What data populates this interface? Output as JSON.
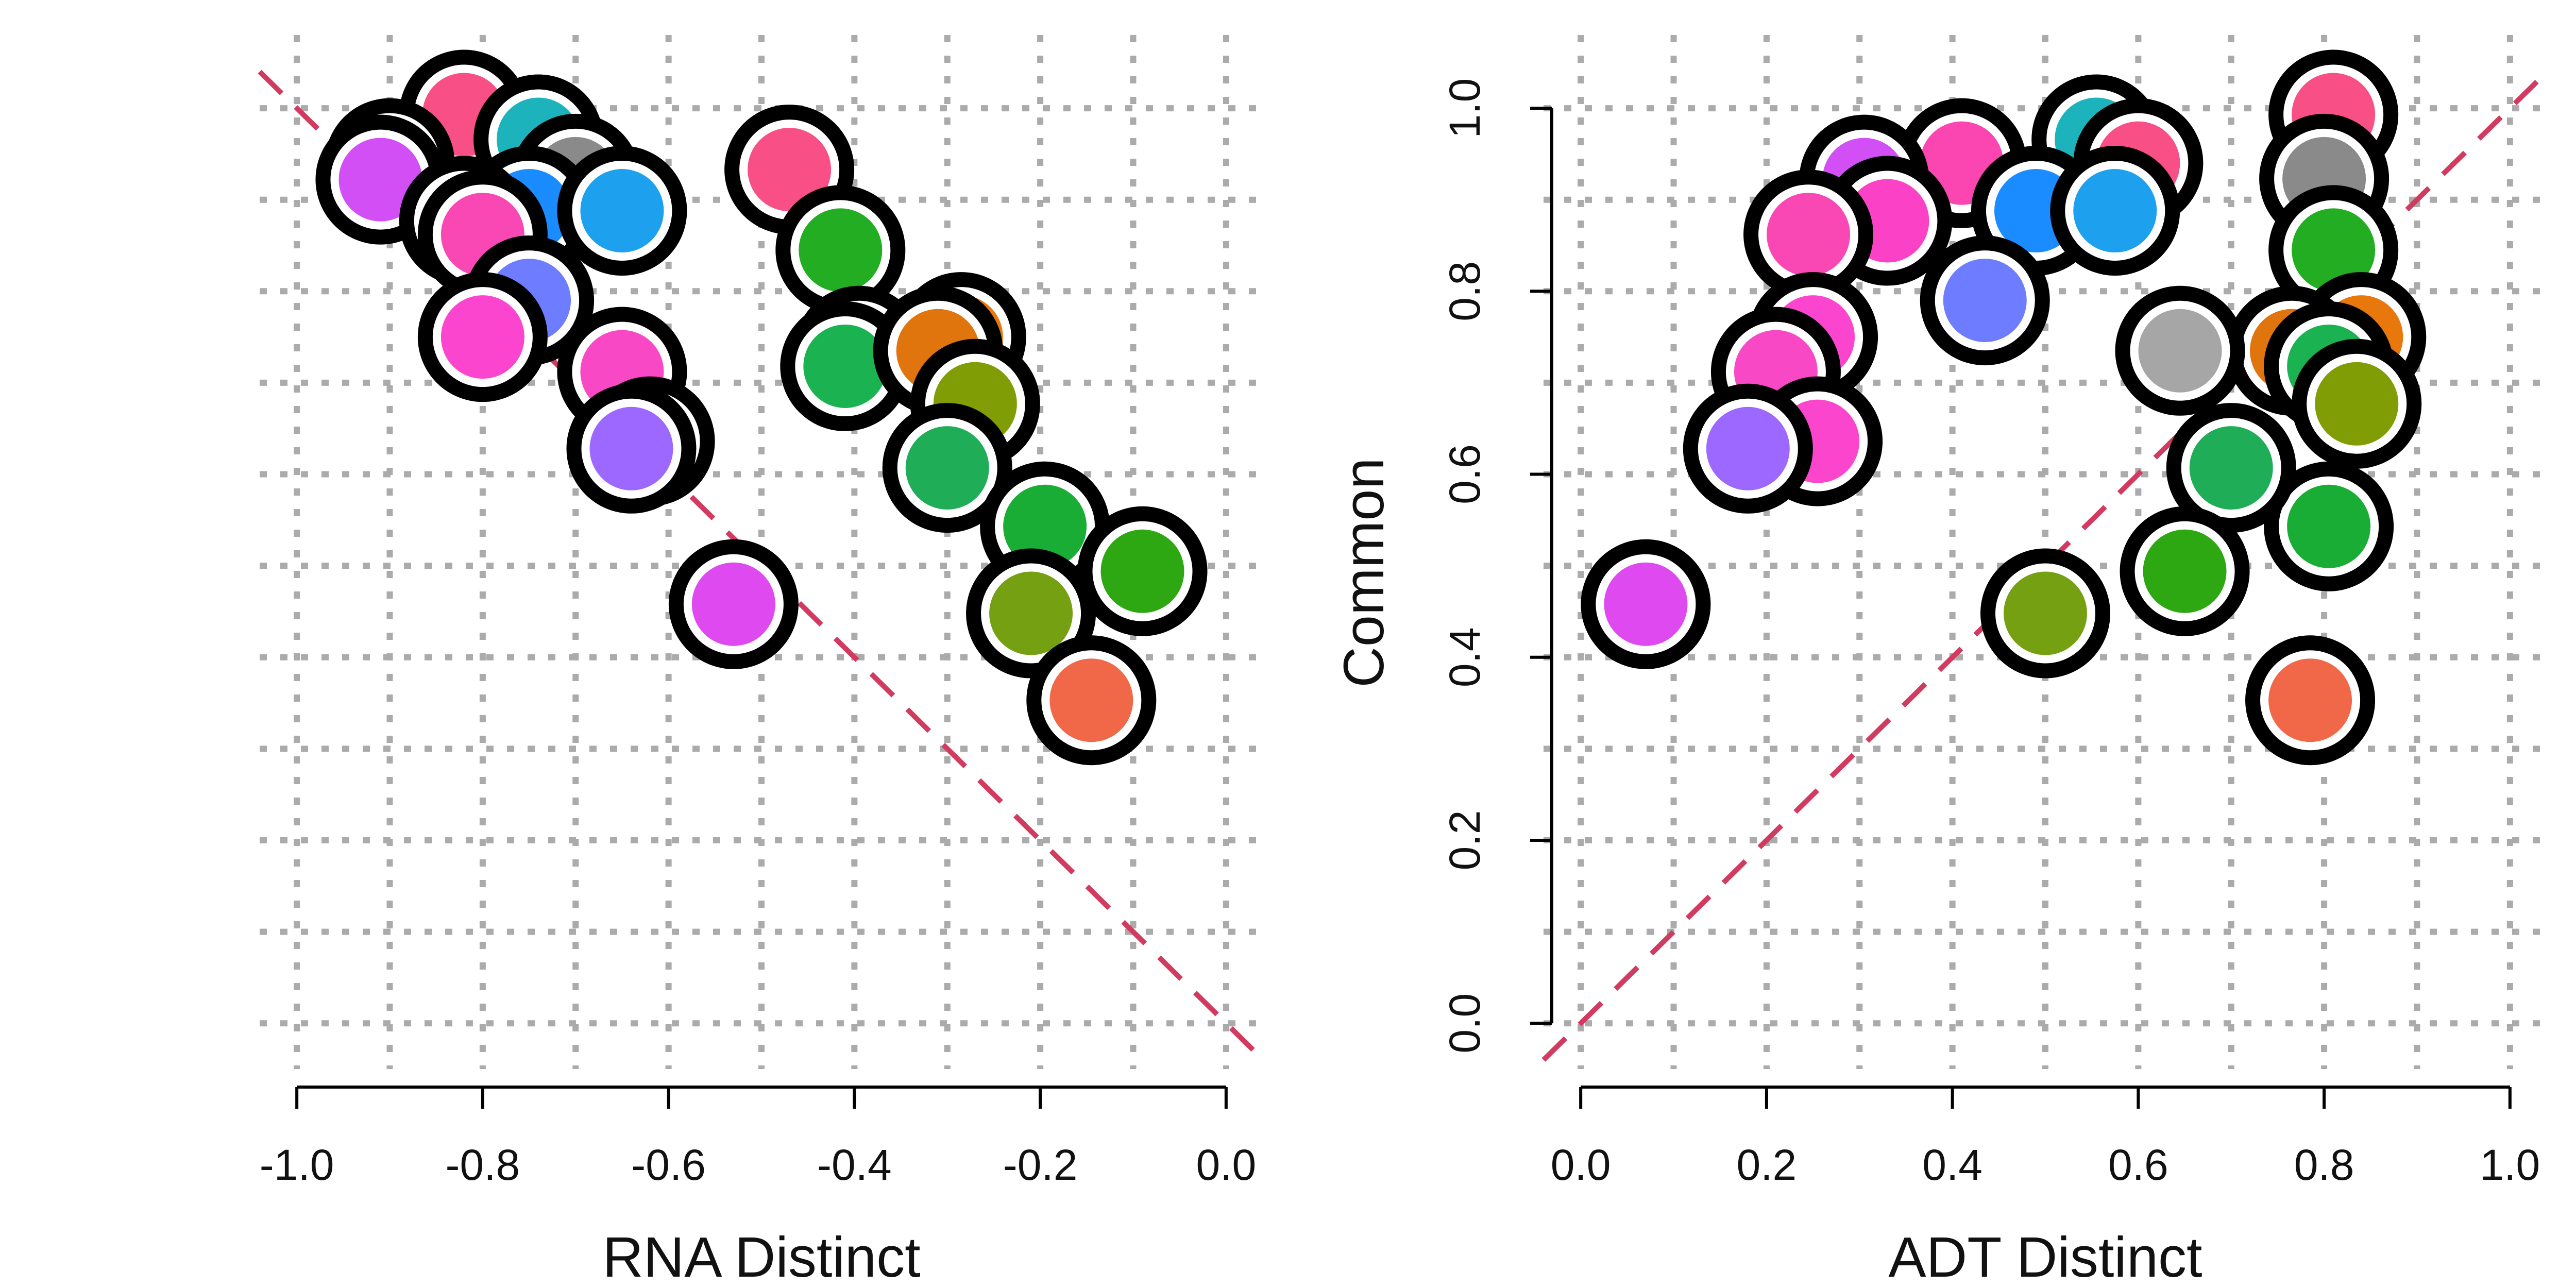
{
  "chart_data": [
    {
      "type": "scatter",
      "xlabel": "RNA Distinct",
      "ylabel": "",
      "xlim": [
        -1.04,
        0.04
      ],
      "ylim": [
        -0.05,
        1.08
      ],
      "xticks": [
        -1.0,
        -0.8,
        -0.6,
        -0.4,
        -0.2,
        0.0
      ],
      "xtick_labels": [
        "-1.0",
        "-0.8",
        "-0.6",
        "-0.4",
        "-0.2",
        "0.0"
      ],
      "grid": true,
      "grid_x": [
        -1.0,
        -0.9,
        -0.8,
        -0.7,
        -0.6,
        -0.5,
        -0.4,
        -0.3,
        -0.2,
        -0.1,
        0.0
      ],
      "grid_y": [
        0.0,
        0.1,
        0.2,
        0.3,
        0.4,
        0.5,
        0.6,
        0.7,
        0.8,
        0.9,
        1.0
      ],
      "reference_line": {
        "type": "diagonal",
        "x": [
          -1.04,
          0.04
        ],
        "y": [
          1.04,
          -0.04
        ],
        "color": "#d23b60"
      },
      "points": [
        {
          "x": -0.82,
          "y": 0.993,
          "color": "#f84f86"
        },
        {
          "x": -0.9,
          "y": 0.94,
          "color": "#fb45b0"
        },
        {
          "x": -0.91,
          "y": 0.922,
          "color": "#d14ff5"
        },
        {
          "x": -0.74,
          "y": 0.966,
          "color": "#1cb3bd"
        },
        {
          "x": -0.7,
          "y": 0.923,
          "color": "#8a8a8a"
        },
        {
          "x": -0.75,
          "y": 0.888,
          "color": "#1a8cff"
        },
        {
          "x": -0.65,
          "y": 0.888,
          "color": "#1da0ed"
        },
        {
          "x": -0.82,
          "y": 0.877,
          "color": "#fb42c6"
        },
        {
          "x": -0.8,
          "y": 0.862,
          "color": "#f948b4"
        },
        {
          "x": -0.75,
          "y": 0.79,
          "color": "#6e7dff"
        },
        {
          "x": -0.8,
          "y": 0.75,
          "color": "#fb45cf"
        },
        {
          "x": -0.65,
          "y": 0.712,
          "color": "#f848c5"
        },
        {
          "x": -0.62,
          "y": 0.636,
          "color": "#fb45cd"
        },
        {
          "x": -0.64,
          "y": 0.628,
          "color": "#9c68ff"
        },
        {
          "x": -0.53,
          "y": 0.458,
          "color": "#df49f0"
        },
        {
          "x": -0.47,
          "y": 0.933,
          "color": "#f84f86"
        },
        {
          "x": -0.415,
          "y": 0.845,
          "color": "#22ad22"
        },
        {
          "x": -0.395,
          "y": 0.735,
          "color": "#a6a6a6"
        },
        {
          "x": -0.41,
          "y": 0.718,
          "color": "#1bb352"
        },
        {
          "x": -0.285,
          "y": 0.75,
          "color": "#e8770c"
        },
        {
          "x": -0.31,
          "y": 0.735,
          "color": "#e0740d"
        },
        {
          "x": -0.27,
          "y": 0.677,
          "color": "#809d05"
        },
        {
          "x": -0.3,
          "y": 0.607,
          "color": "#20ad58"
        },
        {
          "x": -0.195,
          "y": 0.543,
          "color": "#1aad35"
        },
        {
          "x": -0.09,
          "y": 0.494,
          "color": "#2ea812"
        },
        {
          "x": -0.21,
          "y": 0.448,
          "color": "#74a012"
        },
        {
          "x": -0.145,
          "y": 0.353,
          "color": "#f06848"
        }
      ]
    },
    {
      "type": "scatter",
      "xlabel": "ADT Distinct",
      "ylabel": "Common",
      "xlim": [
        -0.04,
        1.04
      ],
      "ylim": [
        -0.05,
        1.08
      ],
      "xticks": [
        0.0,
        0.2,
        0.4,
        0.6,
        0.8,
        1.0
      ],
      "xtick_labels": [
        "0.0",
        "0.2",
        "0.4",
        "0.6",
        "0.8",
        "1.0"
      ],
      "yticks": [
        0.0,
        0.2,
        0.4,
        0.6,
        0.8,
        1.0
      ],
      "ytick_labels": [
        "0.0",
        "0.2",
        "0.4",
        "0.6",
        "0.8",
        "1.0"
      ],
      "grid": true,
      "grid_x": [
        0.0,
        0.1,
        0.2,
        0.3,
        0.4,
        0.5,
        0.6,
        0.7,
        0.8,
        0.9,
        1.0
      ],
      "grid_y": [
        0.0,
        0.1,
        0.2,
        0.3,
        0.4,
        0.5,
        0.6,
        0.7,
        0.8,
        0.9,
        1.0
      ],
      "reference_line": {
        "type": "diagonal",
        "x": [
          -0.04,
          1.04
        ],
        "y": [
          -0.04,
          1.04
        ],
        "color": "#d23b60"
      },
      "points": [
        {
          "x": 0.81,
          "y": 0.993,
          "color": "#f84f86"
        },
        {
          "x": 0.8,
          "y": 0.923,
          "color": "#8a8a8a"
        },
        {
          "x": 0.81,
          "y": 0.845,
          "color": "#22ad22"
        },
        {
          "x": 0.84,
          "y": 0.75,
          "color": "#e8770c"
        },
        {
          "x": 0.765,
          "y": 0.735,
          "color": "#e0740d"
        },
        {
          "x": 0.805,
          "y": 0.718,
          "color": "#1bb352"
        },
        {
          "x": 0.835,
          "y": 0.677,
          "color": "#809d05"
        },
        {
          "x": 0.805,
          "y": 0.543,
          "color": "#1aad35"
        },
        {
          "x": 0.785,
          "y": 0.353,
          "color": "#f06848"
        },
        {
          "x": 0.555,
          "y": 0.966,
          "color": "#1cb3bd"
        },
        {
          "x": 0.6,
          "y": 0.94,
          "color": "#f84f86"
        },
        {
          "x": 0.41,
          "y": 0.94,
          "color": "#fb45b0"
        },
        {
          "x": 0.305,
          "y": 0.922,
          "color": "#d14ff5"
        },
        {
          "x": 0.49,
          "y": 0.888,
          "color": "#1a8cff"
        },
        {
          "x": 0.575,
          "y": 0.888,
          "color": "#1da0ed"
        },
        {
          "x": 0.33,
          "y": 0.877,
          "color": "#fb42c6"
        },
        {
          "x": 0.245,
          "y": 0.862,
          "color": "#f948b4"
        },
        {
          "x": 0.435,
          "y": 0.79,
          "color": "#6e7dff"
        },
        {
          "x": 0.645,
          "y": 0.735,
          "color": "#a6a6a6"
        },
        {
          "x": 0.25,
          "y": 0.75,
          "color": "#fb45cf"
        },
        {
          "x": 0.21,
          "y": 0.712,
          "color": "#f848c5"
        },
        {
          "x": 0.255,
          "y": 0.636,
          "color": "#fb45cd"
        },
        {
          "x": 0.18,
          "y": 0.628,
          "color": "#9c68ff"
        },
        {
          "x": 0.7,
          "y": 0.607,
          "color": "#20ad58"
        },
        {
          "x": 0.65,
          "y": 0.494,
          "color": "#2ea812"
        },
        {
          "x": 0.5,
          "y": 0.448,
          "color": "#74a012"
        },
        {
          "x": 0.07,
          "y": 0.458,
          "color": "#df49f0"
        }
      ]
    }
  ]
}
